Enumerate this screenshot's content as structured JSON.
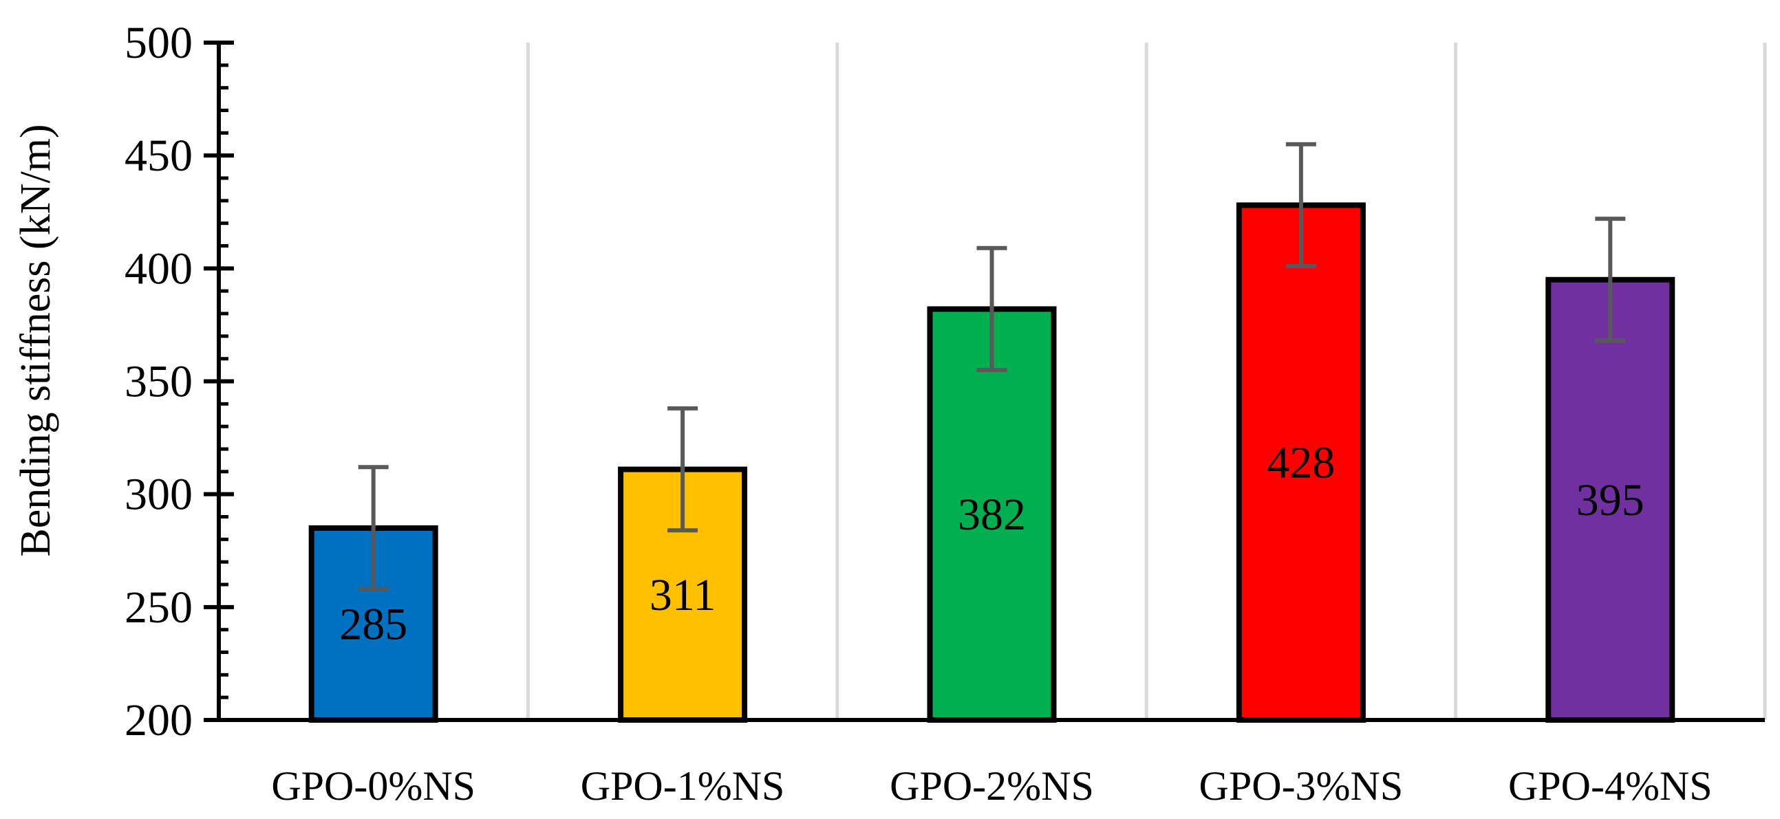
{
  "chart_data": {
    "type": "bar",
    "title": "",
    "xlabel": "",
    "ylabel": "Bending stiffness (kN/m)",
    "ylim": [
      200,
      500
    ],
    "ytick_step": 50,
    "yminor_step": 10,
    "grid": "vertical category separators",
    "legend": "none",
    "categories": [
      "GPO-0%NS",
      "GPO-1%NS",
      "GPO-2%NS",
      "GPO-3%NS",
      "GPO-4%NS"
    ],
    "values": [
      285,
      311,
      382,
      428,
      395
    ],
    "error_bars": [
      {
        "low": 258,
        "high": 312
      },
      {
        "low": 284,
        "high": 338
      },
      {
        "low": 355,
        "high": 409
      },
      {
        "low": 401,
        "high": 455
      },
      {
        "low": 368,
        "high": 422
      }
    ],
    "data_labels": [
      "285",
      "311",
      "382",
      "428",
      "395"
    ],
    "colors": [
      "#0070C0",
      "#FFC000",
      "#00B050",
      "#FF0000",
      "#7030A0"
    ],
    "yticks": [
      "200",
      "250",
      "300",
      "350",
      "400",
      "450",
      "500"
    ]
  }
}
